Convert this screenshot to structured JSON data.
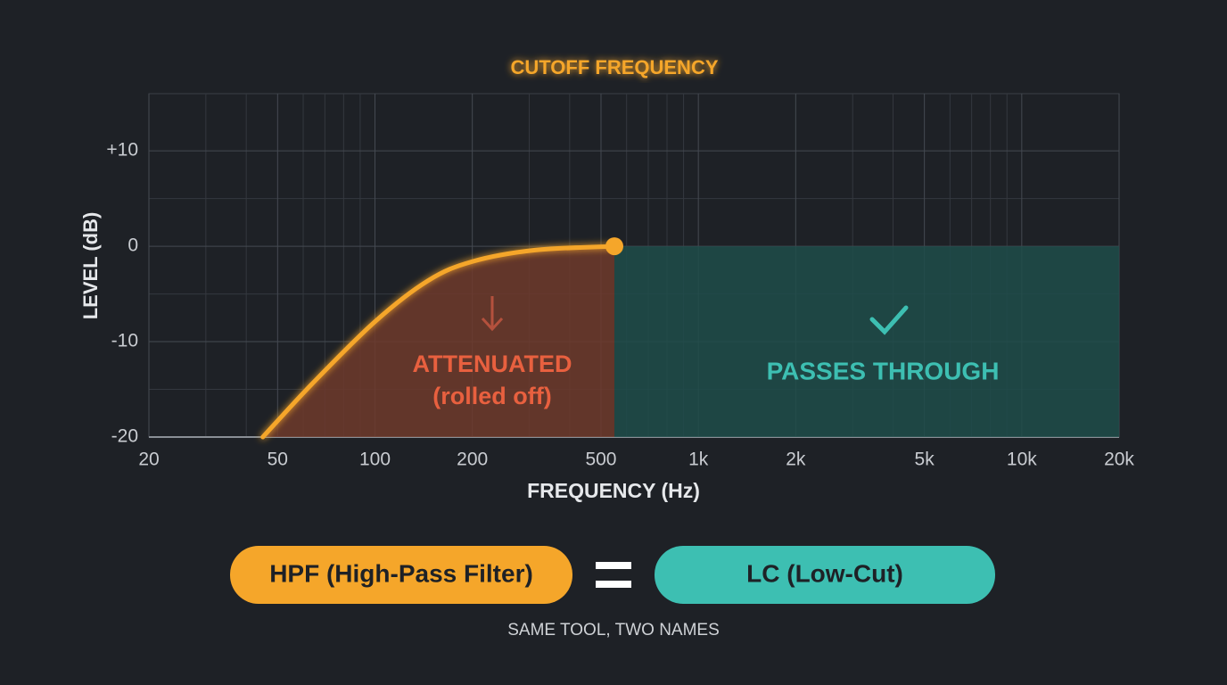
{
  "chart_data": {
    "type": "line",
    "log_x": true,
    "grid": true,
    "xlabel": "FREQUENCY (Hz)",
    "ylabel": "LEVEL (dB)",
    "xlim": [
      20,
      20000
    ],
    "ylim": [
      -20,
      16
    ],
    "xticks": [
      20,
      50,
      100,
      200,
      500,
      {
        "value": 1000,
        "label": "1k"
      },
      {
        "value": 2000,
        "label": "2k"
      },
      {
        "value": 5000,
        "label": "5k"
      },
      {
        "value": 10000,
        "label": "10k"
      },
      {
        "value": 20000,
        "label": "20k"
      }
    ],
    "yticks": [
      {
        "value": 10,
        "label": "+10"
      },
      0,
      -10,
      -20
    ],
    "xgrid_minor": [
      30,
      40,
      60,
      70,
      80,
      90,
      300,
      400,
      600,
      700,
      800,
      900,
      3000,
      4000,
      6000,
      7000,
      8000,
      9000
    ],
    "ygrid_minor": [
      5,
      -5,
      -15
    ],
    "series": [
      {
        "color": "#f5a62a",
        "area_color": "#6e3a2c",
        "x": [
          45,
          64,
          100,
          146,
          200,
          313,
          550
        ],
        "values": [
          -20,
          -14.4,
          -7.9,
          -3.6,
          -1.6,
          -0.4,
          0
        ]
      },
      {
        "color": "#3dbfb2",
        "area_color": "#1f4c4a",
        "x": [
          550,
          20000
        ],
        "values": [
          0,
          0
        ]
      }
    ],
    "cutoff": {
      "x": 550,
      "label": "CUTOFF FREQUENCY",
      "color": "#f5a62a"
    },
    "annotations": [
      "ATTENUATED",
      "(rolled off)",
      "PASSES THROUGH"
    ]
  },
  "footer": {
    "left": "HPF (High-Pass Filter)",
    "right": "LC (Low-Cut)",
    "caption": "SAME TOOL, TWO NAMES"
  }
}
